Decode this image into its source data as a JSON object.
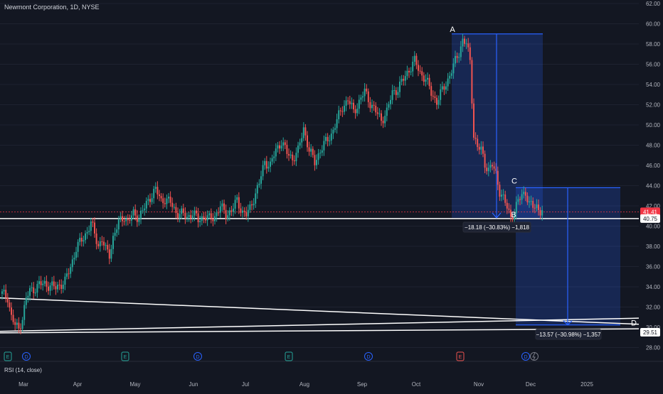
{
  "legend": {
    "title": "Newmont Corporation, 1D, NYSE"
  },
  "rsi_label": "RSI (14, close)",
  "colors": {
    "background": "#131722",
    "up": "#26a69a",
    "down": "#ef5350",
    "measure": "#2962ff",
    "text": "#d1d4dc",
    "current_price": "#f23645",
    "trend_line": "#ffffff"
  },
  "chart_data": {
    "type": "candlestick",
    "y_range": [
      28,
      62
    ],
    "y_ticks": [
      28,
      30,
      32,
      34,
      36,
      38,
      40,
      42,
      44,
      46,
      48,
      50,
      52,
      54,
      56,
      58,
      60,
      62
    ],
    "y_tick_labels": [
      "28.00",
      "30.00",
      "32.00",
      "34.00",
      "36.00",
      "38.00",
      "40.00",
      "42.00",
      "44.00",
      "46.00",
      "48.00",
      "50.00",
      "52.00",
      "54.00",
      "56.00",
      "58.00",
      "60.00",
      "62.00"
    ],
    "x_labels": [
      "Mar",
      "Apr",
      "May",
      "Jun",
      "Jul",
      "Aug",
      "Sep",
      "Oct",
      "Nov",
      "Dec",
      "2025"
    ],
    "price_labels": [
      {
        "value": 41.41,
        "text": "41.41",
        "color": "#f23645"
      },
      {
        "value": 40.75,
        "text": "40.75",
        "color": "#ffffff"
      },
      {
        "value": 29.51,
        "text": "29.51",
        "color": "#ffffff"
      }
    ],
    "path_points": [
      [
        0,
        33.3
      ],
      [
        3,
        33.0
      ],
      [
        5,
        31.0
      ],
      [
        7,
        30.2
      ],
      [
        9,
        29.8
      ],
      [
        11,
        31.0
      ],
      [
        13,
        32.8
      ],
      [
        15,
        33.6
      ],
      [
        18,
        33.9
      ],
      [
        20,
        34.2
      ],
      [
        23,
        34.3
      ],
      [
        26,
        34.1
      ],
      [
        29,
        33.9
      ],
      [
        31,
        34.2
      ],
      [
        34,
        34.5
      ],
      [
        37,
        36.0
      ],
      [
        40,
        37.8
      ],
      [
        43,
        38.6
      ],
      [
        46,
        39.5
      ],
      [
        48,
        40.3
      ],
      [
        50,
        39.2
      ],
      [
        52,
        38.1
      ],
      [
        54,
        38.7
      ],
      [
        56,
        37.6
      ],
      [
        58,
        37.2
      ],
      [
        60,
        38.9
      ],
      [
        63,
        40.3
      ],
      [
        66,
        41.0
      ],
      [
        68,
        40.4
      ],
      [
        71,
        41.2
      ],
      [
        74,
        40.9
      ],
      [
        77,
        41.8
      ],
      [
        80,
        42.9
      ],
      [
        83,
        43.6
      ],
      [
        86,
        42.5
      ],
      [
        88,
        42.7
      ],
      [
        91,
        42.3
      ],
      [
        94,
        41.4
      ],
      [
        97,
        41.2
      ],
      [
        100,
        40.9
      ],
      [
        103,
        41.3
      ],
      [
        106,
        40.6
      ],
      [
        109,
        41.0
      ],
      [
        112,
        40.7
      ],
      [
        115,
        41.0
      ],
      [
        118,
        41.9
      ],
      [
        121,
        41.2
      ],
      [
        124,
        41.5
      ],
      [
        127,
        42.5
      ],
      [
        130,
        41.4
      ],
      [
        132,
        41.1
      ],
      [
        134,
        41.7
      ],
      [
        136,
        42.8
      ],
      [
        139,
        44.2
      ],
      [
        142,
        46.4
      ],
      [
        145,
        46.0
      ],
      [
        148,
        47.5
      ],
      [
        151,
        48.4
      ],
      [
        154,
        47.2
      ],
      [
        157,
        46.7
      ],
      [
        160,
        47.4
      ],
      [
        163,
        49.7
      ],
      [
        166,
        47.5
      ],
      [
        169,
        46.3
      ],
      [
        172,
        47.5
      ],
      [
        175,
        48.3
      ],
      [
        178,
        49.1
      ],
      [
        181,
        50.4
      ],
      [
        184,
        51.8
      ],
      [
        187,
        52.5
      ],
      [
        190,
        51.3
      ],
      [
        193,
        52.3
      ],
      [
        196,
        53.3
      ],
      [
        199,
        52.2
      ],
      [
        202,
        51.3
      ],
      [
        205,
        50.5
      ],
      [
        208,
        51.3
      ],
      [
        211,
        53.2
      ],
      [
        214,
        53.6
      ],
      [
        217,
        54.5
      ],
      [
        220,
        55.5
      ],
      [
        223,
        56.3
      ],
      [
        226,
        55.2
      ],
      [
        229,
        54.5
      ],
      [
        232,
        53.2
      ],
      [
        235,
        52.3
      ],
      [
        238,
        53.4
      ],
      [
        241,
        54.5
      ],
      [
        244,
        55.8
      ],
      [
        247,
        57.2
      ],
      [
        249,
        58.4
      ],
      [
        251,
        58.0
      ],
      [
        253,
        56.3
      ],
      [
        255,
        49.0
      ],
      [
        257,
        47.8
      ],
      [
        259,
        47.5
      ],
      [
        261,
        46.2
      ],
      [
        263,
        45.6
      ],
      [
        265,
        46.0
      ],
      [
        267,
        45.1
      ],
      [
        269,
        43.5
      ],
      [
        271,
        42.7
      ],
      [
        273,
        41.8
      ],
      [
        275,
        40.9
      ],
      [
        277,
        41.5
      ],
      [
        279,
        42.4
      ],
      [
        281,
        43.1
      ],
      [
        283,
        43.4
      ],
      [
        285,
        42.1
      ],
      [
        287,
        41.9
      ],
      [
        289,
        42.0
      ],
      [
        291,
        41.5
      ],
      [
        293,
        41.4
      ]
    ],
    "annotations": [
      {
        "label": "A",
        "value": 59.0
      },
      {
        "label": "B",
        "value": 40.82
      },
      {
        "label": "C",
        "value": 43.8
      },
      {
        "label": "D",
        "value": 30.23
      }
    ],
    "measurements": [
      {
        "from": "A",
        "to": "B",
        "text": "−18.18 (−30.83%) −1,818"
      },
      {
        "from": "C",
        "to": "D",
        "text": "−13.57 (−30.98%) −1,357"
      }
    ],
    "event_markers": [
      "E",
      "D",
      "E",
      "D",
      "E",
      "D",
      "E",
      "D"
    ]
  }
}
